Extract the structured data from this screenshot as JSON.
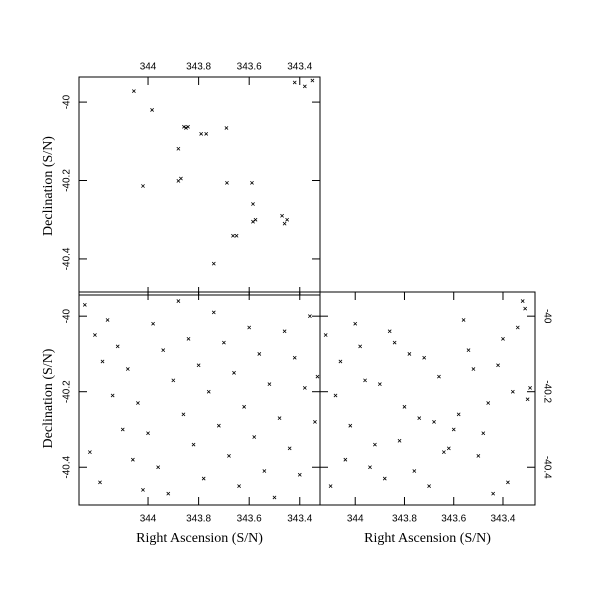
{
  "chart_data": [
    {
      "type": "scatter",
      "ylabel": "Declination (S/N)",
      "xtick_side": "top",
      "ytick_side": "left",
      "color": "#000000",
      "xlim": [
        344.273,
        343.32
      ],
      "ylim": [
        -40.492,
        -39.936
      ],
      "xticks": [
        344,
        343.8,
        343.6,
        343.4
      ],
      "yticks": [
        -40,
        -40.2,
        -40.4
      ],
      "x": [
        344.056,
        343.984,
        343.858,
        343.85,
        343.842,
        343.79,
        343.77,
        343.69,
        343.88,
        343.88,
        343.87,
        344.02,
        343.688,
        343.589,
        343.585,
        343.585,
        343.575,
        343.47,
        343.46,
        343.45,
        343.664,
        343.65,
        343.74,
        343.42,
        343.38,
        343.35
      ],
      "y": [
        -39.972,
        -40.02,
        -40.063,
        -40.066,
        -40.063,
        -40.081,
        -40.081,
        -40.066,
        -40.119,
        -40.201,
        -40.195,
        -40.214,
        -40.206,
        -40.206,
        -40.26,
        -40.305,
        -40.3,
        -40.29,
        -40.31,
        -40.3,
        -40.341,
        -40.341,
        -40.412,
        -39.95,
        -39.96,
        -39.945
      ]
    },
    {
      "type": "scatter",
      "xlabel": "Right Ascension (S/N)",
      "ylabel": "Declination (S/N)",
      "xtick_side": "bottom",
      "ytick_side": "left",
      "color": "#000000",
      "xlim": [
        344.273,
        343.32
      ],
      "ylim": [
        -40.5,
        -39.936
      ],
      "xticks": [
        344,
        343.8,
        343.6,
        343.4
      ],
      "yticks": [
        -40,
        -40.2,
        -40.4
      ],
      "x": [
        344.25,
        344.21,
        344.18,
        344.14,
        344.1,
        344.06,
        344.02,
        343.98,
        343.94,
        343.9,
        343.86,
        343.82,
        343.78,
        343.74,
        343.7,
        343.66,
        343.62,
        343.58,
        343.54,
        343.5,
        343.46,
        343.42,
        343.38,
        343.34,
        344.23,
        344.19,
        344.16,
        344.12,
        344.08,
        344.04,
        344.0,
        343.96,
        343.92,
        343.88,
        343.84,
        343.8,
        343.76,
        343.72,
        343.68,
        343.64,
        343.6,
        343.56,
        343.52,
        343.48,
        343.44,
        343.4,
        343.36,
        343.33
      ],
      "y": [
        -39.97,
        -40.05,
        -40.12,
        -40.21,
        -40.3,
        -40.38,
        -40.46,
        -40.02,
        -40.09,
        -40.17,
        -40.26,
        -40.34,
        -40.43,
        -39.99,
        -40.07,
        -40.15,
        -40.24,
        -40.32,
        -40.41,
        -40.48,
        -40.04,
        -40.11,
        -40.19,
        -40.28,
        -40.36,
        -40.44,
        -40.01,
        -40.08,
        -40.14,
        -40.23,
        -40.31,
        -40.4,
        -40.47,
        -39.96,
        -40.06,
        -40.13,
        -40.2,
        -40.29,
        -40.37,
        -40.45,
        -40.03,
        -40.1,
        -40.18,
        -40.27,
        -40.35,
        -40.42,
        -40.0,
        -40.16
      ]
    },
    {
      "type": "scatter",
      "xlabel": "Right Ascension (S/N)",
      "xtick_side": "bottom",
      "ytick_side": "right",
      "color": "#000000",
      "xlim": [
        344.143,
        343.27
      ],
      "ylim": [
        -40.5,
        -39.936
      ],
      "xticks": [
        344,
        343.8,
        343.6,
        343.4
      ],
      "yticks": [
        -40,
        -40.2,
        -40.4
      ],
      "x": [
        344.12,
        344.08,
        344.04,
        344.0,
        343.96,
        343.92,
        343.88,
        343.84,
        343.8,
        343.76,
        343.72,
        343.68,
        343.64,
        343.6,
        343.56,
        343.52,
        343.48,
        343.44,
        343.4,
        343.36,
        343.32,
        343.3,
        344.1,
        344.06,
        344.02,
        343.98,
        343.94,
        343.9,
        343.86,
        343.82,
        343.78,
        343.74,
        343.7,
        343.66,
        343.62,
        343.58,
        343.54,
        343.5,
        343.46,
        343.42,
        343.38,
        343.34,
        343.31,
        343.29
      ],
      "y": [
        -40.05,
        -40.21,
        -40.38,
        -40.02,
        -40.17,
        -40.34,
        -40.43,
        -40.07,
        -40.24,
        -40.41,
        -40.11,
        -40.28,
        -40.36,
        -40.3,
        -40.01,
        -40.14,
        -40.31,
        -40.47,
        -40.06,
        -40.2,
        -39.96,
        -40.22,
        -40.45,
        -40.12,
        -40.29,
        -40.08,
        -40.4,
        -40.18,
        -40.04,
        -40.33,
        -40.1,
        -40.27,
        -40.45,
        -40.16,
        -40.35,
        -40.26,
        -40.09,
        -40.37,
        -40.23,
        -40.13,
        -40.44,
        -40.03,
        -39.98,
        -40.19
      ]
    }
  ]
}
